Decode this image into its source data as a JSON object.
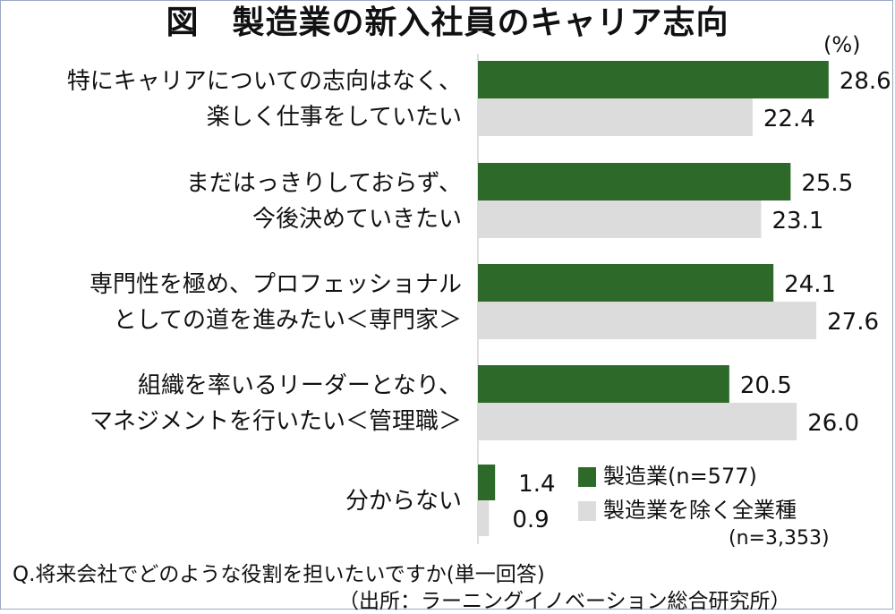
{
  "title": "図　製造業の新入社員のキャリア志向",
  "unit": "(%)",
  "chart_data": {
    "type": "bar",
    "orientation": "horizontal",
    "categories": [
      [
        "特にキャリアについての志向はなく、",
        "楽しく仕事をしていたい"
      ],
      [
        "まだはっきりしておらず、",
        "今後決めていきたい"
      ],
      [
        "専門性を極め、プロフェッショナル",
        "としての道を進みたい＜専門家＞"
      ],
      [
        "組織を率いるリーダーとなり、",
        "マネジメントを行いたい＜管理職＞"
      ],
      [
        "分からない"
      ]
    ],
    "series": [
      {
        "name": "製造業(n=577)",
        "color": "#2d6a2a",
        "values": [
          28.6,
          25.5,
          24.1,
          20.5,
          1.4
        ]
      },
      {
        "name": "製造業を除く全業種",
        "color": "#dcdcdc",
        "values": [
          22.4,
          23.1,
          27.6,
          26.0,
          0.9
        ]
      }
    ],
    "value_labels": [
      [
        "28.6",
        "25.5",
        "24.1",
        "20.5",
        "1.4"
      ],
      [
        "22.4",
        "23.1",
        "27.6",
        "26.0",
        "0.9"
      ]
    ],
    "xlim": [
      0,
      30
    ],
    "grid": false,
    "legend_position": "bottom-right"
  },
  "legend_note": "(n=3,353)",
  "question": "Q.将来会社でどのような役割を担いたいですか(単一回答)",
  "source": "（出所：ラーニングイノベーション総合研究所）"
}
